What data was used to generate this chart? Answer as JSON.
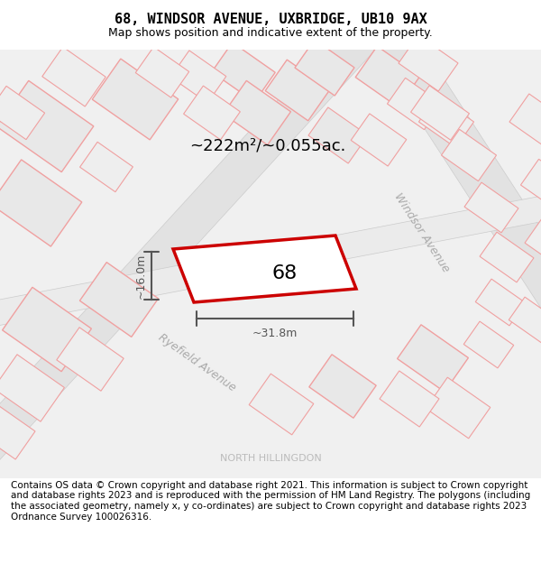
{
  "title_line1": "68, WINDSOR AVENUE, UXBRIDGE, UB10 9AX",
  "title_line2": "Map shows position and indicative extent of the property.",
  "footer_text": "Contains OS data © Crown copyright and database right 2021. This information is subject to Crown copyright and database rights 2023 and is reproduced with the permission of HM Land Registry. The polygons (including the associated geometry, namely x, y co-ordinates) are subject to Crown copyright and database rights 2023 Ordnance Survey 100026316.",
  "north_hillingdon_label": "NORTH HILLINGDON",
  "windsor_avenue_label": "Windsor Avenue",
  "ryefield_avenue_label": "Ryefield Avenue",
  "area_label": "~222m²/~0.055ac.",
  "plot_number": "68",
  "width_label": "~31.8m",
  "height_label": "~16.0m",
  "bg_color": "#ffffff",
  "map_bg": "#f0f0f0",
  "plot_fill": "#ffffff",
  "plot_edge_color": "#cc0000",
  "building_fill": "#e8e8e8",
  "building_stroke": "#f0a0a0",
  "title_fontsize": 11,
  "subtitle_fontsize": 9,
  "footer_fontsize": 7.5
}
